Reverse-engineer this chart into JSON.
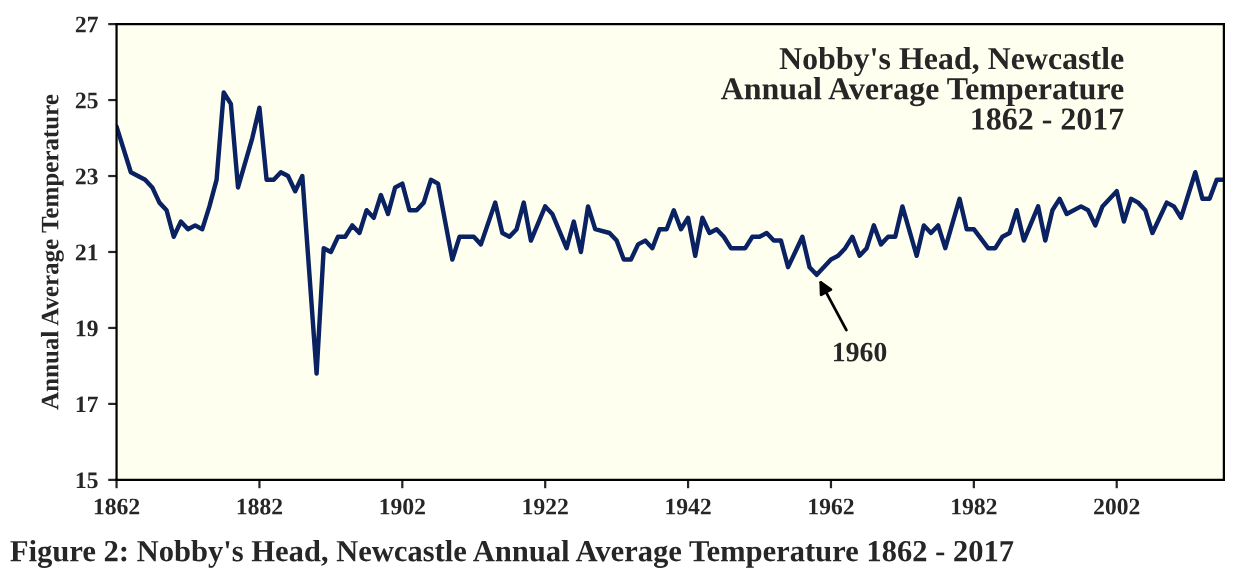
{
  "chart_data": {
    "type": "line",
    "title": "Nobby's Head, Newcastle\nAnnual Average Temperature\n1862 - 2017",
    "ylabel": "Annual Average Temperature",
    "annotations": [
      {
        "text": "1960",
        "x": 1960,
        "y": 20.4
      },
      "Figure 2: Nobby's Head, Newcastle Annual Average Temperature 1862 - 2017"
    ],
    "x": [
      1862,
      1864,
      1866,
      1867,
      1868,
      1869,
      1870,
      1871,
      1872,
      1873,
      1874,
      1875,
      1876,
      1877,
      1878,
      1879,
      1881,
      1882,
      1883,
      1884,
      1885,
      1886,
      1887,
      1888,
      1890,
      1891,
      1892,
      1893,
      1894,
      1895,
      1896,
      1897,
      1898,
      1899,
      1900,
      1901,
      1902,
      1903,
      1904,
      1905,
      1906,
      1907,
      1909,
      1910,
      1912,
      1913,
      1915,
      1916,
      1917,
      1918,
      1919,
      1920,
      1922,
      1923,
      1925,
      1926,
      1927,
      1928,
      1929,
      1931,
      1932,
      1933,
      1934,
      1935,
      1936,
      1937,
      1938,
      1939,
      1940,
      1941,
      1942,
      1943,
      1944,
      1945,
      1946,
      1947,
      1948,
      1949,
      1950,
      1951,
      1952,
      1953,
      1954,
      1955,
      1956,
      1957,
      1958,
      1959,
      1960,
      1962,
      1963,
      1964,
      1965,
      1966,
      1967,
      1968,
      1969,
      1970,
      1971,
      1972,
      1974,
      1975,
      1976,
      1977,
      1978,
      1980,
      1981,
      1982,
      1984,
      1985,
      1986,
      1987,
      1988,
      1989,
      1991,
      1992,
      1993,
      1994,
      1995,
      1997,
      1998,
      1999,
      2000,
      2002,
      2003,
      2004,
      2005,
      2006,
      2007,
      2009,
      2010,
      2011,
      2013,
      2014,
      2015,
      2016,
      2017
    ],
    "series": [
      {
        "color": "#0b2262",
        "values": [
          24.3,
          23.1,
          22.9,
          22.7,
          22.3,
          22.1,
          21.4,
          21.8,
          21.6,
          21.7,
          21.6,
          22.2,
          22.9,
          25.2,
          24.9,
          22.7,
          24.0,
          24.8,
          22.9,
          22.9,
          23.1,
          23.0,
          22.6,
          23.0,
          17.8,
          21.1,
          21.0,
          21.4,
          21.4,
          21.7,
          21.5,
          22.1,
          21.9,
          22.5,
          22.0,
          22.7,
          22.8,
          22.1,
          22.1,
          22.3,
          22.9,
          22.8,
          20.8,
          21.4,
          21.4,
          21.2,
          22.3,
          21.5,
          21.4,
          21.6,
          22.3,
          21.3,
          22.2,
          22.0,
          21.1,
          21.8,
          21.0,
          22.2,
          21.6,
          21.5,
          21.3,
          20.8,
          20.8,
          21.2,
          21.3,
          21.1,
          21.6,
          21.6,
          22.1,
          21.6,
          21.9,
          20.9,
          21.9,
          21.5,
          21.6,
          21.4,
          21.1,
          21.1,
          21.1,
          21.4,
          21.4,
          21.5,
          21.3,
          21.3,
          20.6,
          21.0,
          21.4,
          20.6,
          20.4,
          20.8,
          20.9,
          21.1,
          21.4,
          20.9,
          21.1,
          21.7,
          21.2,
          21.4,
          21.4,
          22.2,
          20.9,
          21.7,
          21.5,
          21.7,
          21.1,
          22.4,
          21.6,
          21.6,
          21.1,
          21.1,
          21.4,
          21.5,
          22.1,
          21.3,
          22.2,
          21.3,
          22.1,
          22.4,
          22.0,
          22.2,
          22.1,
          21.7,
          22.2,
          22.6,
          21.8,
          22.4,
          22.3,
          22.1,
          21.5,
          22.3,
          22.2,
          21.9,
          23.1,
          22.4,
          22.4,
          22.9,
          22.9
        ]
      }
    ],
    "xlim": [
      1862,
      2017
    ],
    "xticks": [
      1862,
      1882,
      1902,
      1922,
      1942,
      1962,
      1982,
      2002
    ],
    "ylim": [
      15,
      27
    ],
    "yticks": [
      15,
      17,
      19,
      21,
      23,
      25,
      27
    ],
    "grid": false,
    "legend": false,
    "marker": "none",
    "line_style": "solid"
  }
}
